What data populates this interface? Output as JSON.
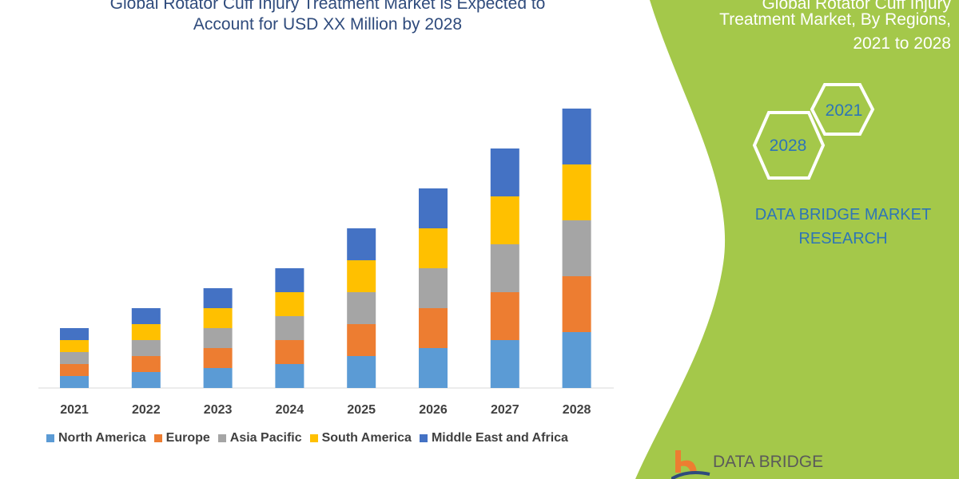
{
  "chart_data": {
    "type": "bar",
    "stacked": true,
    "title": "Global Rotator Cuff Injury Treatment Market is Expected to Account for USD XX Million by 2028",
    "title_lines": [
      "Global Rotator Cuff Injury Treatment Market is Expected to",
      "Account for USD XX Million by 2028"
    ],
    "categories": [
      "2021",
      "2022",
      "2023",
      "2024",
      "2025",
      "2026",
      "2027",
      "2028"
    ],
    "series": [
      {
        "name": "North America",
        "color": "#5b9bd5",
        "values": [
          15,
          20,
          25,
          30,
          40,
          50,
          60,
          70
        ]
      },
      {
        "name": "Europe",
        "color": "#ed7d31",
        "values": [
          15,
          20,
          25,
          30,
          40,
          50,
          60,
          70
        ]
      },
      {
        "name": "Asia Pacific",
        "color": "#a5a5a5",
        "values": [
          15,
          20,
          25,
          30,
          40,
          50,
          60,
          70
        ]
      },
      {
        "name": "South America",
        "color": "#ffc000",
        "values": [
          15,
          20,
          25,
          30,
          40,
          50,
          60,
          70
        ]
      },
      {
        "name": "Middle East and Africa",
        "color": "#4472c4",
        "values": [
          15,
          20,
          25,
          30,
          40,
          50,
          60,
          70
        ]
      }
    ],
    "ylim": [
      0,
      360
    ],
    "y_axis_visible": false,
    "grid": false,
    "legend_placement": "bottom"
  },
  "side_panel": {
    "title_lines": [
      "Global Rotator Cuff Injury",
      "Treatment Market, By Regions,",
      "2021 to 2028"
    ],
    "hex_a": "2021",
    "hex_b": "2028",
    "brand_lines": [
      "DATA BRIDGE MARKET",
      "RESEARCH"
    ],
    "color": "#a4c84a"
  },
  "logo": {
    "text": "DATA BRIDGE"
  }
}
